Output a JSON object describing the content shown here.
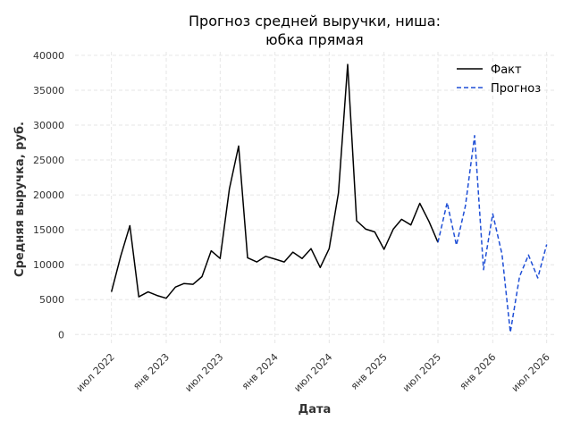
{
  "chart_data": {
    "type": "line",
    "title": [
      "Прогноз средней выручки, ниша:",
      "юбка прямая"
    ],
    "xlabel": "Дата",
    "ylabel": "Средняя выручка, руб.",
    "ylim": [
      -1500,
      40500
    ],
    "xlim": [
      "2022-03-01",
      "2026-08-01"
    ],
    "yticks": [
      0,
      5000,
      10000,
      15000,
      20000,
      25000,
      30000,
      35000,
      40000
    ],
    "xticks": [
      {
        "date": "2022-07-01",
        "label": "июл 2022"
      },
      {
        "date": "2023-01-01",
        "label": "янв 2023"
      },
      {
        "date": "2023-07-01",
        "label": "июл 2023"
      },
      {
        "date": "2024-01-01",
        "label": "янв 2024"
      },
      {
        "date": "2024-07-01",
        "label": "июл 2024"
      },
      {
        "date": "2025-01-01",
        "label": "янв 2025"
      },
      {
        "date": "2025-07-01",
        "label": "июл 2025"
      },
      {
        "date": "2026-01-01",
        "label": "янв 2026"
      },
      {
        "date": "2026-07-01",
        "label": "июл 2026"
      }
    ],
    "grid": true,
    "legend": "top-right",
    "series": [
      {
        "name": "Факт",
        "color": "#000000",
        "style": "solid",
        "x": [
          "2022-07-01",
          "2022-08-01",
          "2022-09-01",
          "2022-10-01",
          "2022-11-01",
          "2022-12-01",
          "2023-01-01",
          "2023-02-01",
          "2023-03-01",
          "2023-04-01",
          "2023-05-01",
          "2023-06-01",
          "2023-07-01",
          "2023-08-01",
          "2023-09-01",
          "2023-10-01",
          "2023-11-01",
          "2023-12-01",
          "2024-01-01",
          "2024-02-01",
          "2024-03-01",
          "2024-04-01",
          "2024-05-01",
          "2024-06-01",
          "2024-07-01",
          "2024-08-01",
          "2024-09-01",
          "2024-10-01",
          "2024-11-01",
          "2024-12-01",
          "2025-01-01",
          "2025-02-01",
          "2025-03-01",
          "2025-04-01",
          "2025-05-01",
          "2025-06-01",
          "2025-07-01"
        ],
        "y": [
          6100,
          11200,
          15600,
          5400,
          6100,
          5600,
          5200,
          6800,
          7300,
          7200,
          8300,
          12000,
          10900,
          20900,
          27000,
          11000,
          10400,
          11200,
          10800,
          10400,
          11800,
          10900,
          12300,
          9600,
          12300,
          20300,
          38700,
          16300,
          15100,
          14700,
          12200,
          15100,
          16500,
          15700,
          18800,
          16200,
          13200
        ]
      },
      {
        "name": "Прогноз",
        "color": "#1f4fd6",
        "style": "dashed",
        "x": [
          "2025-07-01",
          "2025-08-01",
          "2025-09-01",
          "2025-10-01",
          "2025-11-01",
          "2025-12-01",
          "2026-01-01",
          "2026-02-01",
          "2026-03-01",
          "2026-04-01",
          "2026-05-01",
          "2026-06-01",
          "2026-07-01"
        ],
        "y": [
          13200,
          18900,
          12800,
          18400,
          28500,
          9300,
          17300,
          11500,
          300,
          8300,
          11400,
          8100,
          12900
        ]
      }
    ]
  }
}
